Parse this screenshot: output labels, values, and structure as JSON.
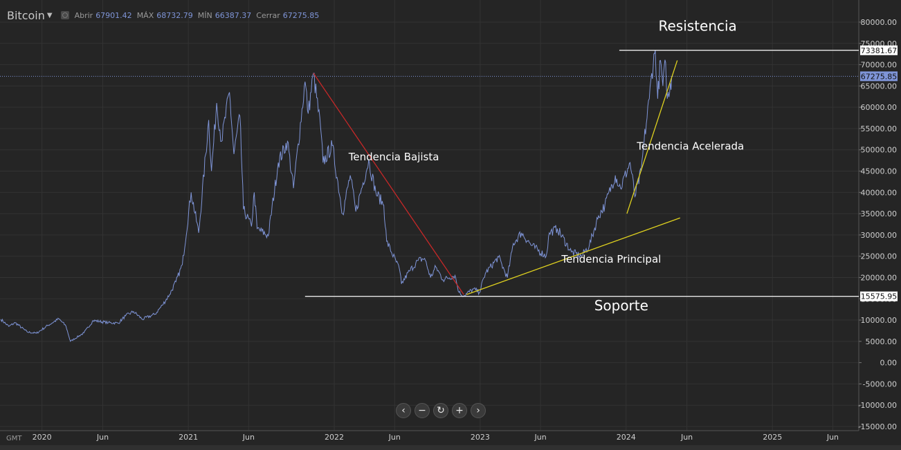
{
  "header": {
    "symbol": "Bitcoin",
    "open_label": "Abrir",
    "open_value": "67901.42",
    "high_label": "MÁX",
    "high_value": "68732.79",
    "low_label": "MÍN",
    "low_value": "66387.37",
    "close_label": "Cerrar",
    "close_value": "67275.85"
  },
  "timezone": "GMT",
  "controls": {
    "left": "‹",
    "zoom_out": "−",
    "reset": "↻",
    "zoom_in": "+",
    "right": "›"
  },
  "colors": {
    "background": "#252525",
    "grid": "#333333",
    "price_line": "#7f95d8",
    "downtrend": "#c62828",
    "uptrend": "#e0d21f",
    "levels": "#ffffff"
  },
  "chart_data": {
    "type": "line",
    "y_ticks": [
      "80000.00",
      "75000.00",
      "70000.00",
      "65000.00",
      "60000.00",
      "55000.00",
      "50000.00",
      "45000.00",
      "40000.00",
      "35000.00",
      "30000.00",
      "25000.00",
      "20000.00",
      "15000.00",
      "10000.00",
      "5000.00",
      "0.00",
      "-5000.00",
      "-10000.00",
      "-15000.00"
    ],
    "x_ticks": [
      {
        "label": "2020",
        "date": "2020-01-01"
      },
      {
        "label": "Jun",
        "date": "2020-06-01"
      },
      {
        "label": "2021",
        "date": "2021-01-01"
      },
      {
        "label": "Jun",
        "date": "2021-06-01"
      },
      {
        "label": "2022",
        "date": "2022-01-01"
      },
      {
        "label": "Jun",
        "date": "2022-06-01"
      },
      {
        "label": "2023",
        "date": "2023-01-01"
      },
      {
        "label": "Jun",
        "date": "2023-06-01"
      },
      {
        "label": "2024",
        "date": "2024-01-01"
      },
      {
        "label": "Jun",
        "date": "2024-06-01"
      },
      {
        "label": "2025",
        "date": "2025-01-01"
      },
      {
        "label": "Jun",
        "date": "2025-06-01"
      }
    ],
    "ylim": [
      -15000,
      80000
    ],
    "xlim": [
      "2019-09-18",
      "2025-08-05"
    ],
    "grid": true,
    "series": [
      {
        "color": "#7f95d8",
        "points": [
          [
            "2019-09-20",
            10200
          ],
          [
            "2019-10-10",
            8500
          ],
          [
            "2019-10-26",
            9400
          ],
          [
            "2019-11-25",
            7200
          ],
          [
            "2019-12-18",
            6900
          ],
          [
            "2020-01-15",
            8700
          ],
          [
            "2020-02-12",
            10300
          ],
          [
            "2020-03-01",
            8600
          ],
          [
            "2020-03-12",
            5000
          ],
          [
            "2020-04-15",
            7000
          ],
          [
            "2020-05-08",
            9900
          ],
          [
            "2020-06-15",
            9400
          ],
          [
            "2020-07-10",
            9300
          ],
          [
            "2020-07-28",
            11000
          ],
          [
            "2020-08-17",
            12000
          ],
          [
            "2020-09-08",
            10200
          ],
          [
            "2020-10-10",
            11400
          ],
          [
            "2020-10-28",
            13500
          ],
          [
            "2020-11-15",
            16000
          ],
          [
            "2020-12-01",
            19000
          ],
          [
            "2020-12-17",
            23000
          ],
          [
            "2021-01-08",
            40000
          ],
          [
            "2021-01-27",
            30500
          ],
          [
            "2021-02-21",
            57000
          ],
          [
            "2021-02-28",
            45000
          ],
          [
            "2021-03-13",
            61000
          ],
          [
            "2021-03-25",
            52000
          ],
          [
            "2021-04-14",
            63500
          ],
          [
            "2021-04-25",
            49000
          ],
          [
            "2021-05-10",
            58000
          ],
          [
            "2021-05-19",
            36000
          ],
          [
            "2021-06-08",
            32000
          ],
          [
            "2021-06-15",
            40000
          ],
          [
            "2021-06-22",
            31500
          ],
          [
            "2021-07-20",
            29800
          ],
          [
            "2021-08-14",
            47000
          ],
          [
            "2021-09-06",
            52000
          ],
          [
            "2021-09-21",
            41000
          ],
          [
            "2021-10-20",
            66000
          ],
          [
            "2021-10-28",
            58500
          ],
          [
            "2021-11-10",
            68000
          ],
          [
            "2021-11-28",
            55000
          ],
          [
            "2021-12-04",
            47000
          ],
          [
            "2021-12-27",
            51000
          ],
          [
            "2022-01-22",
            35000
          ],
          [
            "2022-02-10",
            44000
          ],
          [
            "2022-02-24",
            35500
          ],
          [
            "2022-03-28",
            47500
          ],
          [
            "2022-04-15",
            40000
          ],
          [
            "2022-05-05",
            37000
          ],
          [
            "2022-05-12",
            28500
          ],
          [
            "2022-06-13",
            22000
          ],
          [
            "2022-06-18",
            18500
          ],
          [
            "2022-07-08",
            21500
          ],
          [
            "2022-07-30",
            24000
          ],
          [
            "2022-08-15",
            24500
          ],
          [
            "2022-08-30",
            20000
          ],
          [
            "2022-09-12",
            22500
          ],
          [
            "2022-09-30",
            19500
          ],
          [
            "2022-10-30",
            20500
          ],
          [
            "2022-11-09",
            16500
          ],
          [
            "2022-11-21",
            15700
          ],
          [
            "2022-12-15",
            17300
          ],
          [
            "2022-12-30",
            16500
          ],
          [
            "2023-01-14",
            21000
          ],
          [
            "2023-02-16",
            24800
          ],
          [
            "2023-03-10",
            20000
          ],
          [
            "2023-03-25",
            28000
          ],
          [
            "2023-04-14",
            30500
          ],
          [
            "2023-05-10",
            27500
          ],
          [
            "2023-06-15",
            25000
          ],
          [
            "2023-06-23",
            30500
          ],
          [
            "2023-07-13",
            31500
          ],
          [
            "2023-08-17",
            26000
          ],
          [
            "2023-09-11",
            25000
          ],
          [
            "2023-10-01",
            27500
          ],
          [
            "2023-10-24",
            34500
          ],
          [
            "2023-11-09",
            37000
          ],
          [
            "2023-12-05",
            44000
          ],
          [
            "2023-12-18",
            41000
          ],
          [
            "2024-01-11",
            47000
          ],
          [
            "2024-01-23",
            39000
          ],
          [
            "2024-02-08",
            45000
          ],
          [
            "2024-02-15",
            52000
          ],
          [
            "2024-02-28",
            62000
          ],
          [
            "2024-03-05",
            68000
          ],
          [
            "2024-03-14",
            73381.67
          ],
          [
            "2024-03-20",
            62000
          ],
          [
            "2024-03-27",
            71000
          ],
          [
            "2024-04-02",
            65000
          ],
          [
            "2024-04-09",
            70500
          ],
          [
            "2024-04-13",
            62000
          ],
          [
            "2024-04-19",
            63500
          ],
          [
            "2024-04-24",
            67275.85
          ]
        ]
      }
    ],
    "trendlines": [
      {
        "name": "Tendencia Bajista",
        "color": "#c62828",
        "from": [
          "2021-11-10",
          68000
        ],
        "to": [
          "2022-11-21",
          16000
        ]
      },
      {
        "name": "Tendencia Principal",
        "color": "#e0d21f",
        "from": [
          "2022-11-28",
          16000
        ],
        "to": [
          "2024-05-15",
          34000
        ]
      },
      {
        "name": "Tendencia Acelerada",
        "color": "#e0d21f",
        "from": [
          "2024-01-03",
          35000
        ],
        "to": [
          "2024-05-08",
          71000
        ]
      }
    ],
    "levels": [
      {
        "name": "Resistencia",
        "value": 73381.67,
        "label": "73381.67",
        "from": "2023-12-15"
      },
      {
        "name": "Soporte",
        "value": 15575.95,
        "label": "15575.95",
        "from": "2021-10-20"
      }
    ],
    "current_price": {
      "value": 67275.85,
      "label": "67275.85"
    },
    "annotations": [
      {
        "text": "Resistencia",
        "date": "2024-06-28",
        "value": 78000,
        "size": 20
      },
      {
        "text": "Tendencia Bajista",
        "date": "2022-05-30",
        "value": 47500,
        "size": 15
      },
      {
        "text": "Tendencia Acelerada",
        "date": "2024-06-10",
        "value": 50000,
        "size": 15
      },
      {
        "text": "Tendencia Principal",
        "date": "2023-11-25",
        "value": 23500,
        "size": 15
      },
      {
        "text": "Soporte",
        "date": "2023-12-20",
        "value": 12300,
        "size": 20
      }
    ]
  }
}
